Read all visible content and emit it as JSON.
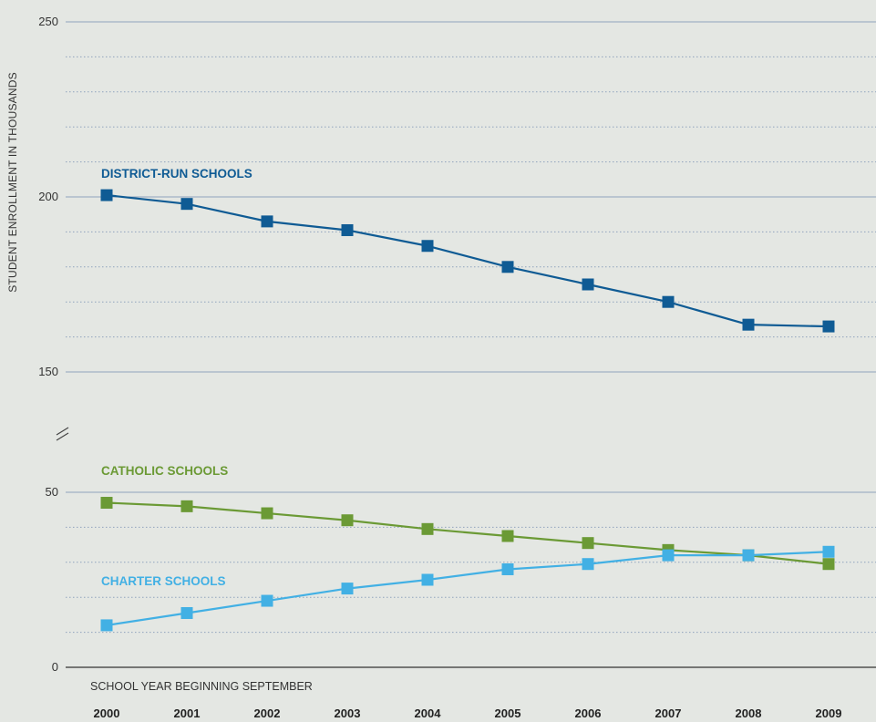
{
  "chart_data": {
    "type": "line",
    "title": "",
    "xlabel": "SCHOOL YEAR BEGINNING SEPTEMBER",
    "ylabel": "STUDENT ENROLLMENT IN  THOUSANDS",
    "y_axis_break": true,
    "ylim_upper_panel": [
      150,
      250
    ],
    "ylim_lower_panel": [
      0,
      50
    ],
    "grid": "dotted",
    "x": [
      "2000",
      "2001",
      "2002",
      "2003",
      "2004",
      "2005",
      "2006",
      "2007",
      "2008",
      "2009"
    ],
    "y_ticks_labeled": [
      "250",
      "200",
      "150",
      "50",
      "0"
    ],
    "series": [
      {
        "name": "DISTRICT-RUN SCHOOLS",
        "color": "#0f5b94",
        "values": [
          200.5,
          198,
          193,
          190.5,
          186,
          180,
          175,
          170,
          163.5,
          163
        ]
      },
      {
        "name": "CATHOLIC SCHOOLS",
        "color": "#6b9a35",
        "values": [
          47,
          46,
          44,
          42,
          39.5,
          37.5,
          35.5,
          33.5,
          32,
          29.5
        ]
      },
      {
        "name": "CHARTER SCHOOLS",
        "color": "#42b0e4",
        "values": [
          12,
          15.5,
          19,
          22.5,
          25,
          28,
          29.5,
          32,
          32,
          33
        ]
      }
    ]
  }
}
